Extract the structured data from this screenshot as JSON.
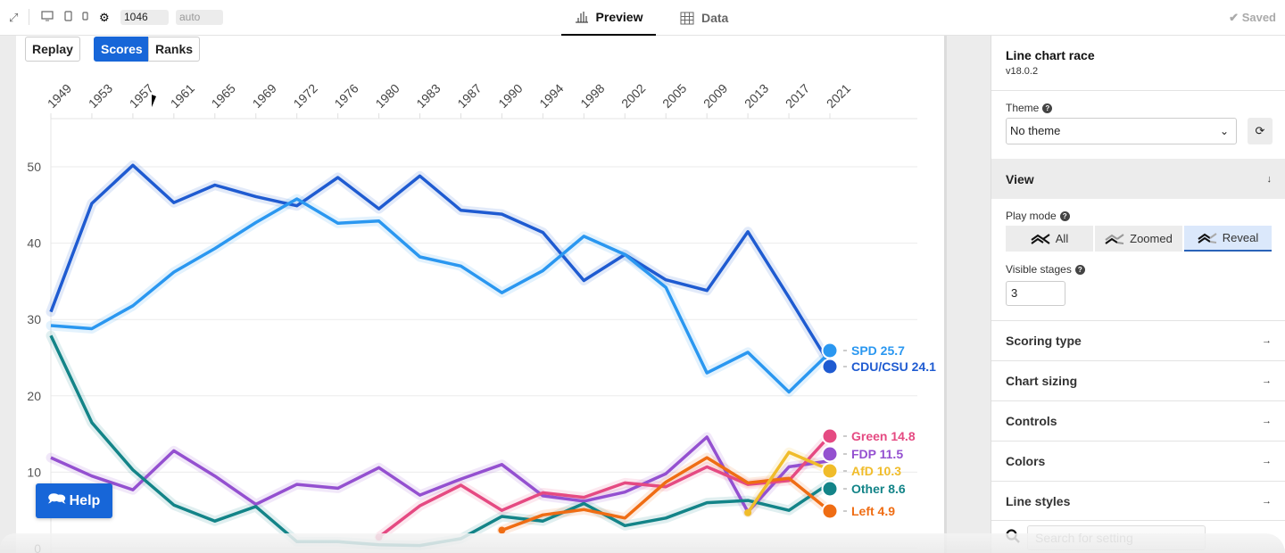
{
  "topbar": {
    "width_value": "1046",
    "height_value": "auto",
    "tabs": [
      {
        "label": "Preview",
        "icon": "bar-chart-icon",
        "active": true
      },
      {
        "label": "Data",
        "icon": "grid-icon",
        "active": false
      }
    ],
    "status": "Saved"
  },
  "canvas": {
    "replay_label": "Replay",
    "scores_label": "Scores",
    "ranks_label": "Ranks",
    "help_label": "Help"
  },
  "sidebar": {
    "title": "Line chart race",
    "version": "v18.0.2",
    "theme_label": "Theme",
    "theme_value": "No theme",
    "view_section": "View",
    "play_mode_label": "Play mode",
    "play_modes": [
      {
        "label": "All",
        "active": false
      },
      {
        "label": "Zoomed",
        "active": false
      },
      {
        "label": "Reveal",
        "active": true
      }
    ],
    "visible_stages_label": "Visible stages",
    "visible_stages_value": "3",
    "sections": [
      "Scoring type",
      "Chart sizing",
      "Controls",
      "Colors",
      "Line styles"
    ],
    "search_placeholder": "Search for setting"
  },
  "chart_data": {
    "type": "line",
    "title": "",
    "xlabel": "",
    "ylabel": "",
    "x": [
      "1949",
      "1953",
      "1957",
      "1961",
      "1965",
      "1969",
      "1972",
      "1976",
      "1980",
      "1983",
      "1987",
      "1990",
      "1994",
      "1998",
      "2002",
      "2005",
      "2009",
      "2013",
      "2017",
      "2021"
    ],
    "yticks": [
      0,
      10,
      20,
      30,
      40,
      50
    ],
    "ylim": [
      0,
      56
    ],
    "grid": true,
    "legend": "end-labels-right",
    "series": [
      {
        "name": "CDU/CSU",
        "color": "#1f5bd1",
        "label": "CDU/CSU 24.1",
        "start": 0,
        "values": [
          31.0,
          45.2,
          50.2,
          45.3,
          47.6,
          46.1,
          44.9,
          48.6,
          44.5,
          48.8,
          44.3,
          43.8,
          41.4,
          35.1,
          38.5,
          35.2,
          33.8,
          41.5,
          32.9,
          24.1
        ]
      },
      {
        "name": "SPD",
        "color": "#2a97f0",
        "label": "SPD 25.7",
        "start": 0,
        "values": [
          29.2,
          28.8,
          31.8,
          36.2,
          39.3,
          42.7,
          45.8,
          42.6,
          42.9,
          38.2,
          37.0,
          33.5,
          36.4,
          40.9,
          38.5,
          34.2,
          23.0,
          25.7,
          20.5,
          25.7
        ]
      },
      {
        "name": "FDP",
        "color": "#9450d0",
        "label": "FDP 11.5",
        "start": 0,
        "values": [
          11.9,
          9.5,
          7.7,
          12.8,
          9.5,
          5.8,
          8.4,
          7.9,
          10.6,
          7.0,
          9.1,
          11.0,
          6.9,
          6.2,
          7.4,
          9.8,
          14.6,
          4.8,
          10.7,
          11.5
        ]
      },
      {
        "name": "Other",
        "color": "#138488",
        "label": "Other 8.6",
        "start": 0,
        "values": [
          27.9,
          16.5,
          10.3,
          5.7,
          3.6,
          5.5,
          0.9,
          0.9,
          0.5,
          0.4,
          1.3,
          4.2,
          3.6,
          5.9,
          3.0,
          4.0,
          6.0,
          6.3,
          5.0,
          8.6
        ]
      },
      {
        "name": "Green",
        "color": "#e54a82",
        "label": "Green 14.8",
        "start": 8,
        "values": [
          1.5,
          5.6,
          8.3,
          5.0,
          7.3,
          6.7,
          8.6,
          8.1,
          10.7,
          8.4,
          8.9,
          14.8
        ]
      },
      {
        "name": "Left",
        "color": "#ef6d14",
        "label": "Left 4.9",
        "start": 11,
        "values": [
          2.4,
          4.4,
          5.1,
          4.0,
          8.7,
          11.9,
          8.6,
          9.2,
          4.9
        ]
      },
      {
        "name": "AfD",
        "color": "#f0bc2a",
        "label": "AfD 10.3",
        "start": 17,
        "values": [
          4.7,
          12.6,
          10.3
        ]
      }
    ]
  }
}
